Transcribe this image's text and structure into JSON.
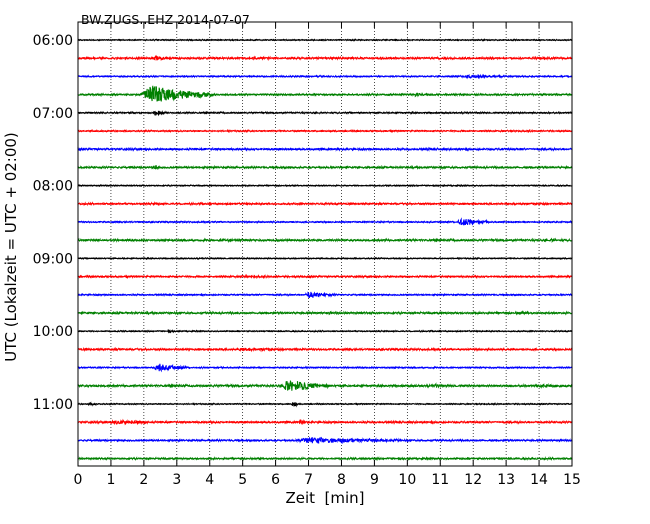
{
  "chart_data": {
    "type": "line",
    "title": "BW.ZUGS..EHZ 2014-07-07",
    "xlabel": "Zeit  [min]",
    "ylabel": "UTC (Lokalzeit = UTC + 02:00)",
    "xlim": [
      0,
      15
    ],
    "x_ticks": [
      "0",
      "1",
      "2",
      "3",
      "4",
      "5",
      "6",
      "7",
      "8",
      "9",
      "10",
      "11",
      "12",
      "13",
      "14",
      "15"
    ],
    "y_ticks": [
      "06:00",
      "07:00",
      "08:00",
      "09:00",
      "10:00",
      "11:00"
    ],
    "grid": "vertical dotted at each minute",
    "trace_interval_minutes": 15,
    "trace_color_cycle": [
      "#000000",
      "#ff0000",
      "#0000ff",
      "#008000"
    ],
    "traces": [
      {
        "start": "06:00",
        "color": "#000000",
        "base_noise": 0.12,
        "events": []
      },
      {
        "start": "06:15",
        "color": "#ff0000",
        "base_noise": 0.2,
        "events": [
          {
            "t": 2.3,
            "dur": 0.5,
            "amp": 0.8
          },
          {
            "t": 5.0,
            "dur": 1.0,
            "amp": 0.2
          }
        ]
      },
      {
        "start": "06:30",
        "color": "#0000ff",
        "base_noise": 0.15,
        "events": [
          {
            "t": 11.6,
            "dur": 1.4,
            "amp": 0.4
          }
        ]
      },
      {
        "start": "06:45",
        "color": "#008000",
        "base_noise": 0.18,
        "events": [
          {
            "t": 1.9,
            "dur": 2.2,
            "amp": 4.0,
            "clip": true
          },
          {
            "t": 10.2,
            "dur": 0.6,
            "amp": 0.3
          }
        ]
      },
      {
        "start": "07:00",
        "color": "#000000",
        "base_noise": 0.15,
        "events": [
          {
            "t": 2.3,
            "dur": 0.4,
            "amp": 1.0
          }
        ]
      },
      {
        "start": "07:15",
        "color": "#ff0000",
        "base_noise": 0.15,
        "events": []
      },
      {
        "start": "07:30",
        "color": "#0000ff",
        "base_noise": 0.2,
        "events": []
      },
      {
        "start": "07:45",
        "color": "#008000",
        "base_noise": 0.2,
        "events": [
          {
            "t": 2.3,
            "dur": 0.2,
            "amp": 1.0
          }
        ]
      },
      {
        "start": "08:00",
        "color": "#000000",
        "base_noise": 0.12,
        "events": []
      },
      {
        "start": "08:15",
        "color": "#ff0000",
        "base_noise": 0.18,
        "events": [
          {
            "t": 2.3,
            "dur": 0.3,
            "amp": 0.3
          }
        ]
      },
      {
        "start": "08:30",
        "color": "#0000ff",
        "base_noise": 0.15,
        "events": [
          {
            "t": 11.5,
            "dur": 1.0,
            "amp": 1.6
          }
        ]
      },
      {
        "start": "08:45",
        "color": "#008000",
        "base_noise": 0.2,
        "events": [
          {
            "t": 4.2,
            "dur": 0.8,
            "amp": 0.3
          },
          {
            "t": 14.3,
            "dur": 0.5,
            "amp": 0.3
          }
        ]
      },
      {
        "start": "09:00",
        "color": "#000000",
        "base_noise": 0.12,
        "events": []
      },
      {
        "start": "09:15",
        "color": "#ff0000",
        "base_noise": 0.18,
        "events": [
          {
            "t": 4.9,
            "dur": 0.6,
            "amp": 0.3
          }
        ]
      },
      {
        "start": "09:30",
        "color": "#0000ff",
        "base_noise": 0.15,
        "events": [
          {
            "t": 6.9,
            "dur": 0.9,
            "amp": 1.4
          }
        ]
      },
      {
        "start": "09:45",
        "color": "#008000",
        "base_noise": 0.2,
        "events": [
          {
            "t": 13.3,
            "dur": 0.5,
            "amp": 0.3
          }
        ]
      },
      {
        "start": "10:00",
        "color": "#000000",
        "base_noise": 0.12,
        "events": [
          {
            "t": 2.7,
            "dur": 0.3,
            "amp": 0.2
          }
        ]
      },
      {
        "start": "10:15",
        "color": "#ff0000",
        "base_noise": 0.2,
        "events": [
          {
            "t": 4.8,
            "dur": 1.0,
            "amp": 0.6
          }
        ]
      },
      {
        "start": "10:30",
        "color": "#0000ff",
        "base_noise": 0.15,
        "events": [
          {
            "t": 2.3,
            "dur": 1.0,
            "amp": 1.6
          }
        ]
      },
      {
        "start": "10:45",
        "color": "#008000",
        "base_noise": 0.22,
        "events": [
          {
            "t": 6.2,
            "dur": 1.4,
            "amp": 2.6,
            "clip": true
          },
          {
            "t": 10.8,
            "dur": 0.4,
            "amp": 0.6
          },
          {
            "t": 13.9,
            "dur": 1.0,
            "amp": 0.4
          }
        ]
      },
      {
        "start": "11:00",
        "color": "#000000",
        "base_noise": 0.12,
        "events": [
          {
            "t": 0.3,
            "dur": 0.3,
            "amp": 0.5
          },
          {
            "t": 6.5,
            "dur": 0.2,
            "amp": 1.5
          }
        ]
      },
      {
        "start": "11:15",
        "color": "#ff0000",
        "base_noise": 0.2,
        "events": [
          {
            "t": 1.0,
            "dur": 1.2,
            "amp": 0.7
          },
          {
            "t": 6.7,
            "dur": 0.2,
            "amp": 1.2
          }
        ]
      },
      {
        "start": "11:30",
        "color": "#0000ff",
        "base_noise": 0.18,
        "events": [
          {
            "t": 6.6,
            "dur": 3.2,
            "amp": 1.2
          }
        ]
      },
      {
        "start": "11:45",
        "color": "#008000",
        "base_noise": 0.18,
        "events": []
      }
    ]
  }
}
